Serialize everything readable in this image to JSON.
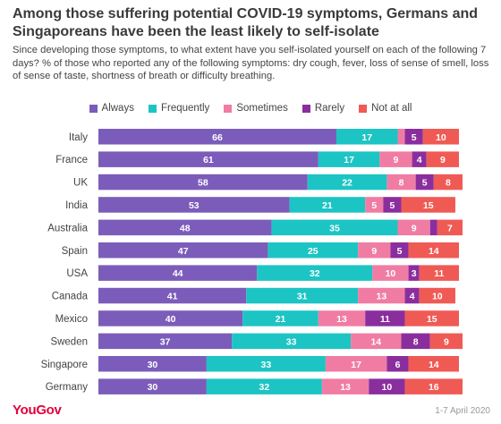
{
  "header": {
    "title": "Among those suffering potential COVID-19 symptoms, Germans and Singaporeans have been the least likely to self-isolate",
    "subtitle": "Since developing those symptoms, to what extent have you self-isolated yourself on each of the following 7 days? % of those who reported any of the following symptoms: dry cough, fever, loss of sense of smell, loss of sense of taste, shortness of breath or difficulty breathing."
  },
  "footer": {
    "brand": "YouGov",
    "date": "1-7 April 2020"
  },
  "chart_data": {
    "type": "bar",
    "orientation": "horizontal",
    "stacked": true,
    "title": "Among those suffering potential COVID-19 symptoms, Germans and Singaporeans have been the least likely to self-isolate",
    "subtitle": "Since developing those symptoms, to what extent have you self-isolated yourself on each of the following 7 days? % of those who reported any of the following symptoms: dry cough, fever, loss of sense of smell, loss of sense of taste, shortness of breath or difficulty breathing.",
    "xlim": [
      0,
      100
    ],
    "grid": false,
    "legend_position": "top",
    "categories": [
      "Italy",
      "France",
      "UK",
      "India",
      "Australia",
      "Spain",
      "USA",
      "Canada",
      "Mexico",
      "Sweden",
      "Singapore",
      "Germany"
    ],
    "series": [
      {
        "name": "Always",
        "color": "#7b5cba",
        "values": [
          66,
          61,
          58,
          53,
          48,
          47,
          44,
          41,
          40,
          37,
          30,
          30
        ]
      },
      {
        "name": "Frequently",
        "color": "#1dc4c4",
        "values": [
          17,
          17,
          22,
          21,
          35,
          25,
          32,
          31,
          21,
          33,
          33,
          32
        ]
      },
      {
        "name": "Sometimes",
        "color": "#f07ca4",
        "values": [
          2,
          9,
          8,
          5,
          9,
          9,
          10,
          13,
          13,
          14,
          17,
          13
        ]
      },
      {
        "name": "Rarely",
        "color": "#8a2e9e",
        "values": [
          5,
          4,
          5,
          5,
          2,
          5,
          3,
          4,
          11,
          8,
          6,
          10
        ]
      },
      {
        "name": "Not at all",
        "color": "#f05a55",
        "values": [
          10,
          9,
          8,
          15,
          7,
          14,
          11,
          10,
          15,
          9,
          14,
          16
        ]
      }
    ],
    "labels": [
      [
        "66",
        "17",
        "",
        "5",
        "10"
      ],
      [
        "61",
        "17",
        "9",
        "4",
        "9"
      ],
      [
        "58",
        "22",
        "8",
        "5",
        "8"
      ],
      [
        "53",
        "21",
        "5",
        "5",
        "15"
      ],
      [
        "48",
        "35",
        "9",
        "",
        "7"
      ],
      [
        "47",
        "25",
        "9",
        "5",
        "14"
      ],
      [
        "44",
        "32",
        "10",
        "3",
        "11"
      ],
      [
        "41",
        "31",
        "13",
        "4",
        "10"
      ],
      [
        "40",
        "21",
        "13",
        "11",
        "15"
      ],
      [
        "37",
        "33",
        "14",
        "8",
        "9"
      ],
      [
        "30",
        "33",
        "17",
        "6",
        "14"
      ],
      [
        "30",
        "32",
        "13",
        "10",
        "16"
      ]
    ]
  }
}
